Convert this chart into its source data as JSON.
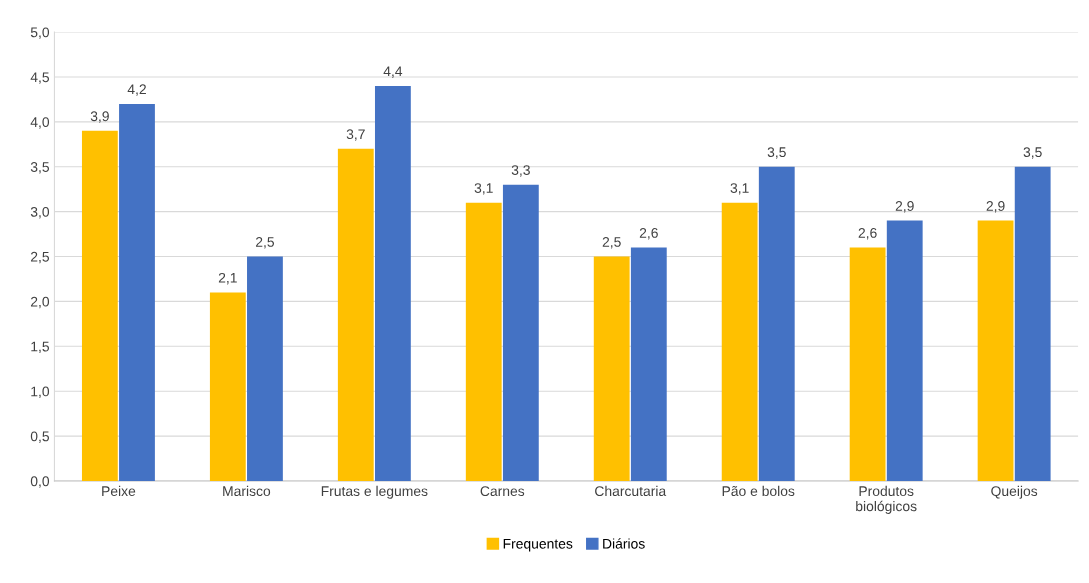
{
  "chart_data": {
    "type": "bar",
    "categories": [
      "Peixe",
      "Marisco",
      "Frutas e legumes",
      "Carnes",
      "Charcutaria",
      "Pão e bolos",
      "Produtos\nbiológicos",
      "Queijos"
    ],
    "series": [
      {
        "name": "Frequentes",
        "color": "#ffc000",
        "values": [
          3.9,
          2.1,
          3.7,
          3.1,
          2.5,
          3.1,
          2.6,
          2.9
        ],
        "value_labels": [
          "3,9",
          "2,1",
          "3,7",
          "3,1",
          "2,5",
          "3,1",
          "2,6",
          "2,9"
        ]
      },
      {
        "name": "Diários",
        "color": "#4472c4",
        "values": [
          4.2,
          2.5,
          4.4,
          3.3,
          2.6,
          3.5,
          2.9,
          3.5
        ],
        "value_labels": [
          "4,2",
          "2,5",
          "4,4",
          "3,3",
          "2,6",
          "3,5",
          "2,9",
          "3,5"
        ]
      }
    ],
    "ylim": [
      0,
      5
    ],
    "yticks": [
      {
        "value": 0,
        "label": "0,0"
      },
      {
        "value": 0.5,
        "label": "0,5"
      },
      {
        "value": 1,
        "label": "1,0"
      },
      {
        "value": 1.5,
        "label": "1,5"
      },
      {
        "value": 2,
        "label": "2,0"
      },
      {
        "value": 2.5,
        "label": "2,5"
      },
      {
        "value": 3,
        "label": "3,0"
      },
      {
        "value": 3.5,
        "label": "3,5"
      },
      {
        "value": 4,
        "label": "4,0"
      },
      {
        "value": 4.5,
        "label": "4,5"
      },
      {
        "value": 5,
        "label": "5,0"
      }
    ],
    "grid": "y",
    "legend": "bottom"
  }
}
